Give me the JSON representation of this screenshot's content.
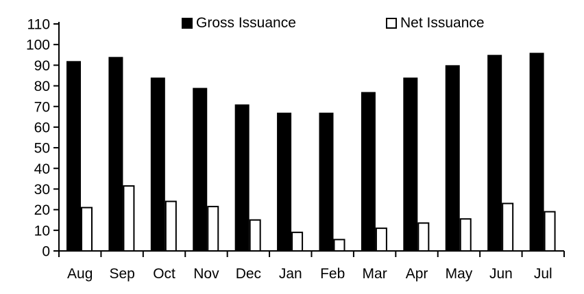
{
  "chart_data": {
    "type": "bar",
    "title": "",
    "xlabel": "",
    "ylabel": "",
    "categories": [
      "Aug",
      "Sep",
      "Oct",
      "Nov",
      "Dec",
      "Jan",
      "Feb",
      "Mar",
      "Apr",
      "May",
      "Jun",
      "Jul"
    ],
    "series": [
      {
        "name": "Gross Issuance",
        "fill": "#000000",
        "stroke": "#000000",
        "values": [
          92,
          94,
          84,
          79,
          71,
          67,
          67,
          77,
          84,
          90,
          95,
          96
        ]
      },
      {
        "name": "Net Issuance",
        "fill": "#ffffff",
        "stroke": "#000000",
        "values": [
          21,
          31.5,
          24,
          21.5,
          15,
          9,
          5.5,
          11,
          13.5,
          15.5,
          23,
          19
        ]
      }
    ],
    "ylim": [
      0,
      110
    ],
    "yticks": [
      0,
      10,
      20,
      30,
      40,
      50,
      60,
      70,
      80,
      90,
      100,
      110
    ],
    "grid": false,
    "legend_position": "top"
  },
  "colors": {
    "axis": "#000000",
    "text": "#000000",
    "background": "#ffffff"
  }
}
